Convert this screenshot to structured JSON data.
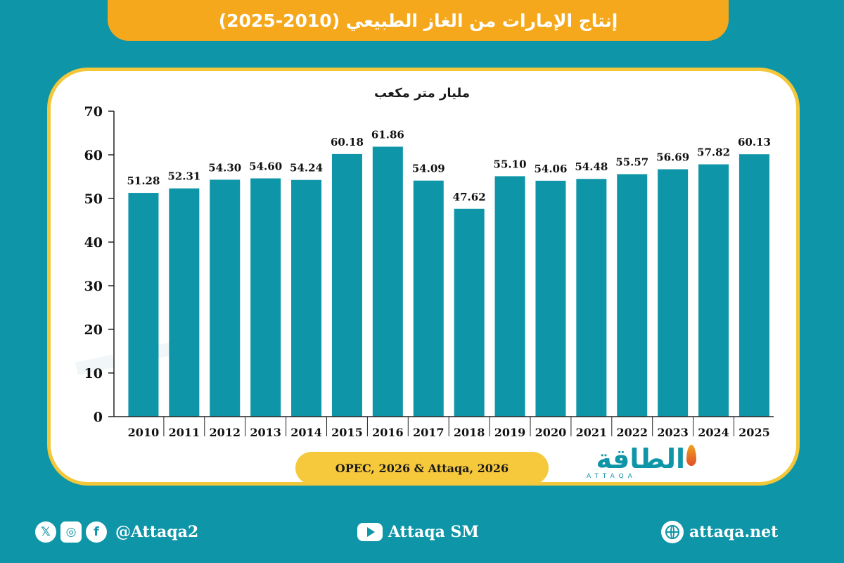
{
  "header": {
    "title": "إنتاج الإمارات من الغاز الطبيعي (2010-2025)"
  },
  "chart_data": {
    "type": "bar",
    "unit_label": "مليار متر مكعب",
    "categories": [
      "2010",
      "2011",
      "2012",
      "2013",
      "2014",
      "2015",
      "2016",
      "2017",
      "2018",
      "2019",
      "2020",
      "2021",
      "2022",
      "2023",
      "2024",
      "2025"
    ],
    "values": [
      51.28,
      52.31,
      54.3,
      54.6,
      54.24,
      60.18,
      61.86,
      54.09,
      47.62,
      55.1,
      54.06,
      54.48,
      55.57,
      56.69,
      57.82,
      60.13
    ],
    "value_labels": [
      "51.28",
      "52.31",
      "54.30",
      "54.60",
      "54.24",
      "60.18",
      "61.86",
      "54.09",
      "47.62",
      "55.10",
      "54.06",
      "54.48",
      "55.57",
      "56.69",
      "57.82",
      "60.13"
    ],
    "yticks": [
      "0",
      "10",
      "20",
      "30",
      "40",
      "50",
      "60",
      "70"
    ],
    "ylim": [
      0,
      70
    ],
    "grid": false,
    "bar_color": "#0e95a8"
  },
  "source": {
    "text": "OPEC, 2026 & Attaqa, 2026"
  },
  "logo": {
    "arabic": "الطاقة",
    "latin": "ATTAQA"
  },
  "footer": {
    "social_handle": "@Attaqa2",
    "youtube_label": "Attaqa SM",
    "website": "attaqa.net",
    "icons": [
      "x-icon",
      "instagram-icon",
      "facebook-icon",
      "youtube-icon",
      "globe-icon"
    ]
  },
  "colors": {
    "background": "#0e95a8",
    "banner": "#f6a81c",
    "card_border": "#f2c73a",
    "pill": "#f6c93c"
  }
}
